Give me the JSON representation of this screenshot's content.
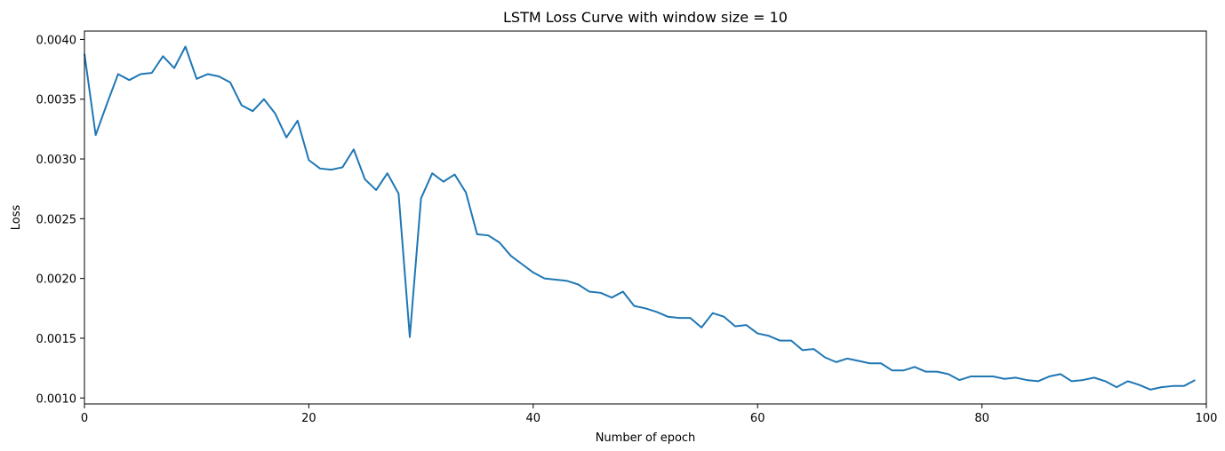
{
  "chart_data": {
    "type": "line",
    "title": "LSTM Loss Curve with window size = 10",
    "xlabel": "Number of epoch",
    "ylabel": "Loss",
    "xlim": [
      0,
      100
    ],
    "ylim": [
      0.00095,
      0.00407
    ],
    "xticks": [
      0,
      20,
      40,
      60,
      80,
      100
    ],
    "xtick_labels": [
      "0",
      "20",
      "40",
      "60",
      "80",
      "100"
    ],
    "yticks": [
      0.001,
      0.0015,
      0.002,
      0.0025,
      0.003,
      0.0035,
      0.004
    ],
    "ytick_labels": [
      "0.0010",
      "0.0015",
      "0.0020",
      "0.0025",
      "0.0030",
      "0.0035",
      "0.0040"
    ],
    "grid": false,
    "legend": false,
    "line_color": "#1f77b4",
    "series": [
      {
        "x": [
          0,
          1,
          2,
          3,
          4,
          5,
          6,
          7,
          8,
          9,
          10,
          11,
          12,
          13,
          14,
          15,
          16,
          17,
          18,
          19,
          20,
          21,
          22,
          23,
          24,
          25,
          26,
          27,
          28,
          29,
          30,
          31,
          32,
          33,
          34,
          35,
          36,
          37,
          38,
          39,
          40,
          41,
          42,
          43,
          44,
          45,
          46,
          47,
          48,
          49,
          50,
          51,
          52,
          53,
          54,
          55,
          56,
          57,
          58,
          59,
          60,
          61,
          62,
          63,
          64,
          65,
          66,
          67,
          68,
          69,
          70,
          71,
          72,
          73,
          74,
          75,
          76,
          77,
          78,
          79,
          80,
          81,
          82,
          83,
          84,
          85,
          86,
          87,
          88,
          89,
          90,
          91,
          92,
          93,
          94,
          95,
          96,
          97,
          98,
          99
        ],
        "values": [
          0.00388,
          0.0032,
          0.00346,
          0.00371,
          0.00366,
          0.00371,
          0.00372,
          0.00386,
          0.00376,
          0.00394,
          0.00367,
          0.00371,
          0.00369,
          0.00364,
          0.00345,
          0.0034,
          0.0035,
          0.00338,
          0.00318,
          0.00332,
          0.00299,
          0.00292,
          0.00291,
          0.00293,
          0.00308,
          0.00283,
          0.00274,
          0.00288,
          0.00271,
          0.00151,
          0.00267,
          0.00288,
          0.00281,
          0.00287,
          0.00272,
          0.00237,
          0.00236,
          0.0023,
          0.00219,
          0.00212,
          0.00205,
          0.002,
          0.00199,
          0.00198,
          0.00195,
          0.00189,
          0.00188,
          0.00184,
          0.00189,
          0.00177,
          0.00175,
          0.00172,
          0.00168,
          0.00167,
          0.00167,
          0.00159,
          0.00171,
          0.00168,
          0.0016,
          0.00161,
          0.00154,
          0.00152,
          0.00148,
          0.00148,
          0.0014,
          0.00141,
          0.00134,
          0.0013,
          0.00133,
          0.00131,
          0.00129,
          0.00129,
          0.00123,
          0.00123,
          0.00126,
          0.00122,
          0.00122,
          0.0012,
          0.00115,
          0.00118,
          0.00118,
          0.00118,
          0.00116,
          0.00117,
          0.00115,
          0.00114,
          0.00118,
          0.0012,
          0.00114,
          0.00115,
          0.00117,
          0.00114,
          0.00109,
          0.00114,
          0.00111,
          0.00107,
          0.00109,
          0.0011,
          0.0011,
          0.00115
        ]
      }
    ]
  }
}
